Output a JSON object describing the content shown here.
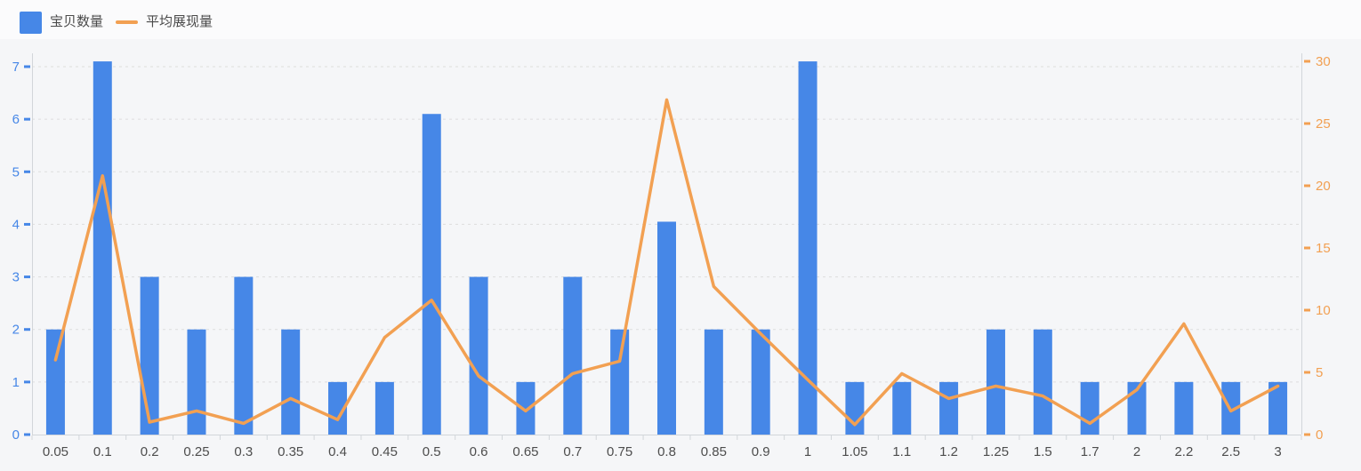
{
  "legend": {
    "bar": {
      "label": "宝贝数量"
    },
    "line": {
      "label": "平均展现量"
    }
  },
  "colors": {
    "bar": "#4687e7",
    "line": "#f2a052",
    "left_axis_label": "#4687e7",
    "right_axis_label": "#f2a052",
    "x_axis_label": "#4d4d4d",
    "gridline": "#dddddd",
    "axis_line": "#d2d6da",
    "background": "#f5f6f8",
    "header_background": "#fbfbfc"
  },
  "chart_data": {
    "type": "bar+line",
    "title": "",
    "xlabel": "",
    "ylabel_left": "",
    "ylabel_right": "",
    "legend_position": "top-left",
    "grid": {
      "horizontal_dashed": true,
      "vertical": false
    },
    "categories": [
      "0.05",
      "0.1",
      "0.2",
      "0.25",
      "0.3",
      "0.35",
      "0.4",
      "0.45",
      "0.5",
      "0.6",
      "0.65",
      "0.7",
      "0.75",
      "0.8",
      "0.85",
      "0.9",
      "1",
      "1.05",
      "1.1",
      "1.2",
      "1.25",
      "1.5",
      "1.7",
      "2",
      "2.2",
      "2.5",
      "3"
    ],
    "series": [
      {
        "name": "宝贝数量",
        "type": "bar",
        "y_axis": "left",
        "color": "#4687e7",
        "values": [
          2,
          7.1,
          3,
          2,
          3,
          2,
          1,
          1,
          6.1,
          3,
          1,
          3,
          2,
          4.05,
          2,
          2,
          7.1,
          1,
          1,
          1,
          2,
          2,
          1,
          1,
          1,
          1,
          1
        ]
      },
      {
        "name": "平均展现量",
        "type": "line",
        "y_axis": "right",
        "color": "#f2a052",
        "values": [
          6,
          20.8,
          1,
          1.9,
          0.9,
          2.9,
          1.2,
          7.8,
          10.8,
          4.7,
          1.9,
          4.9,
          5.9,
          26.9,
          11.9,
          8.1,
          4.4,
          0.8,
          4.9,
          2.9,
          3.9,
          3.1,
          0.9,
          3.6,
          8.9,
          1.9,
          3.9
        ]
      }
    ],
    "left_axis": {
      "min": 0,
      "max": 7,
      "tick_interval": 1,
      "tick_labels": [
        "0",
        "1",
        "2",
        "3",
        "4",
        "5",
        "6",
        "7"
      ]
    },
    "right_axis": {
      "min": 0,
      "max": 30,
      "tick_interval": 5,
      "tick_labels": [
        "0",
        "5",
        "10",
        "15",
        "20",
        "25",
        "30"
      ]
    }
  }
}
